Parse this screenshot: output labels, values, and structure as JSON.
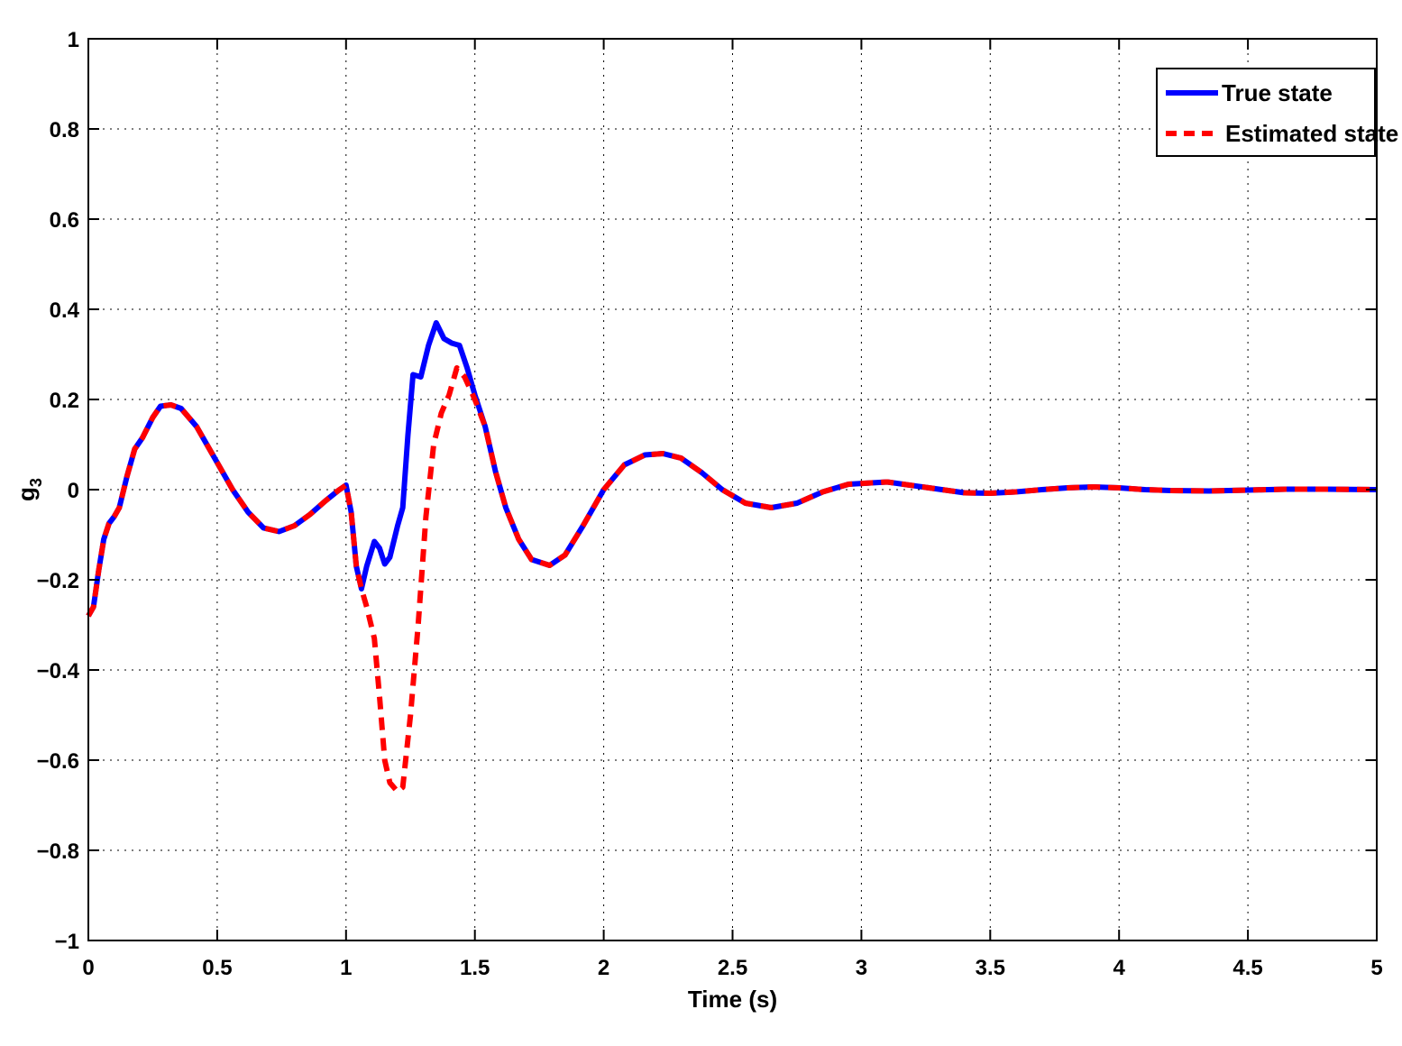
{
  "chart_data": {
    "type": "line",
    "xlabel": "Time (s)",
    "ylabel": "g",
    "ylabel_sub": "3",
    "xlim": [
      0,
      5
    ],
    "ylim": [
      -1,
      1
    ],
    "grid": true,
    "legend_position": "top-right",
    "x_ticks": [
      0,
      0.5,
      1,
      1.5,
      2,
      2.5,
      3,
      3.5,
      4,
      4.5,
      5
    ],
    "x_tick_labels": [
      "0",
      "0.5",
      "1",
      "1.5",
      "2",
      "2.5",
      "3",
      "3.5",
      "4",
      "4.5",
      "5"
    ],
    "y_ticks": [
      -1,
      -0.8,
      -0.6,
      -0.4,
      -0.2,
      0,
      0.2,
      0.4,
      0.6,
      0.8,
      1
    ],
    "y_tick_labels": [
      "−1",
      "−0.8",
      "−0.6",
      "−0.4",
      "−0.2",
      "0",
      "0.2",
      "0.4",
      "0.6",
      "0.8",
      "1"
    ],
    "series": [
      {
        "name": "True state",
        "color": "#0000ff",
        "style": "solid",
        "points": [
          [
            0,
            -0.28
          ],
          [
            0.02,
            -0.26
          ],
          [
            0.04,
            -0.18
          ],
          [
            0.06,
            -0.11
          ],
          [
            0.08,
            -0.075
          ],
          [
            0.1,
            -0.06
          ],
          [
            0.12,
            -0.04
          ],
          [
            0.15,
            0.03
          ],
          [
            0.18,
            0.09
          ],
          [
            0.21,
            0.115
          ],
          [
            0.25,
            0.16
          ],
          [
            0.28,
            0.185
          ],
          [
            0.32,
            0.188
          ],
          [
            0.36,
            0.18
          ],
          [
            0.42,
            0.14
          ],
          [
            0.5,
            0.06
          ],
          [
            0.56,
            0.0
          ],
          [
            0.62,
            -0.05
          ],
          [
            0.68,
            -0.085
          ],
          [
            0.74,
            -0.093
          ],
          [
            0.8,
            -0.08
          ],
          [
            0.86,
            -0.055
          ],
          [
            0.92,
            -0.025
          ],
          [
            0.97,
            -0.002
          ],
          [
            1.0,
            0.01
          ],
          [
            1.02,
            -0.05
          ],
          [
            1.04,
            -0.17
          ],
          [
            1.06,
            -0.22
          ],
          [
            1.08,
            -0.17
          ],
          [
            1.11,
            -0.115
          ],
          [
            1.13,
            -0.13
          ],
          [
            1.15,
            -0.165
          ],
          [
            1.17,
            -0.15
          ],
          [
            1.2,
            -0.08
          ],
          [
            1.22,
            -0.04
          ],
          [
            1.24,
            0.12
          ],
          [
            1.26,
            0.255
          ],
          [
            1.29,
            0.25
          ],
          [
            1.32,
            0.32
          ],
          [
            1.35,
            0.37
          ],
          [
            1.38,
            0.335
          ],
          [
            1.41,
            0.325
          ],
          [
            1.44,
            0.32
          ],
          [
            1.47,
            0.27
          ],
          [
            1.5,
            0.21
          ],
          [
            1.54,
            0.14
          ],
          [
            1.58,
            0.04
          ],
          [
            1.62,
            -0.04
          ],
          [
            1.67,
            -0.11
          ],
          [
            1.72,
            -0.155
          ],
          [
            1.79,
            -0.168
          ],
          [
            1.85,
            -0.145
          ],
          [
            1.92,
            -0.08
          ],
          [
            2.0,
            0.0
          ],
          [
            2.08,
            0.055
          ],
          [
            2.16,
            0.077
          ],
          [
            2.23,
            0.08
          ],
          [
            2.3,
            0.07
          ],
          [
            2.38,
            0.038
          ],
          [
            2.46,
            0.0
          ],
          [
            2.55,
            -0.03
          ],
          [
            2.65,
            -0.04
          ],
          [
            2.75,
            -0.03
          ],
          [
            2.85,
            -0.005
          ],
          [
            2.95,
            0.012
          ],
          [
            3.1,
            0.017
          ],
          [
            3.25,
            0.005
          ],
          [
            3.4,
            -0.007
          ],
          [
            3.5,
            -0.008
          ],
          [
            3.6,
            -0.005
          ],
          [
            3.7,
            0.0
          ],
          [
            3.8,
            0.004
          ],
          [
            3.9,
            0.006
          ],
          [
            4.0,
            0.004
          ],
          [
            4.1,
            0.0
          ],
          [
            4.2,
            -0.002
          ],
          [
            4.35,
            -0.003
          ],
          [
            4.5,
            -0.001
          ],
          [
            4.65,
            0.001
          ],
          [
            4.8,
            0.001
          ],
          [
            5.0,
            0.0
          ]
        ]
      },
      {
        "name": "Estimated state",
        "color": "#ff0000",
        "style": "dashed",
        "points": [
          [
            0,
            -0.28
          ],
          [
            0.02,
            -0.26
          ],
          [
            0.04,
            -0.18
          ],
          [
            0.06,
            -0.11
          ],
          [
            0.08,
            -0.075
          ],
          [
            0.1,
            -0.06
          ],
          [
            0.12,
            -0.04
          ],
          [
            0.15,
            0.03
          ],
          [
            0.18,
            0.09
          ],
          [
            0.21,
            0.115
          ],
          [
            0.25,
            0.16
          ],
          [
            0.28,
            0.185
          ],
          [
            0.32,
            0.188
          ],
          [
            0.36,
            0.18
          ],
          [
            0.42,
            0.14
          ],
          [
            0.5,
            0.06
          ],
          [
            0.56,
            0.0
          ],
          [
            0.62,
            -0.05
          ],
          [
            0.68,
            -0.085
          ],
          [
            0.74,
            -0.093
          ],
          [
            0.8,
            -0.08
          ],
          [
            0.86,
            -0.055
          ],
          [
            0.92,
            -0.025
          ],
          [
            0.97,
            -0.002
          ],
          [
            1.0,
            0.01
          ],
          [
            1.02,
            -0.05
          ],
          [
            1.04,
            -0.17
          ],
          [
            1.06,
            -0.22
          ],
          [
            1.08,
            -0.26
          ],
          [
            1.11,
            -0.33
          ],
          [
            1.13,
            -0.46
          ],
          [
            1.15,
            -0.6
          ],
          [
            1.17,
            -0.65
          ],
          [
            1.2,
            -0.67
          ],
          [
            1.22,
            -0.66
          ],
          [
            1.25,
            -0.5
          ],
          [
            1.28,
            -0.3
          ],
          [
            1.31,
            -0.06
          ],
          [
            1.34,
            0.1
          ],
          [
            1.37,
            0.17
          ],
          [
            1.4,
            0.21
          ],
          [
            1.43,
            0.27
          ],
          [
            1.46,
            0.25
          ],
          [
            1.5,
            0.2
          ],
          [
            1.54,
            0.14
          ],
          [
            1.58,
            0.04
          ],
          [
            1.62,
            -0.04
          ],
          [
            1.67,
            -0.11
          ],
          [
            1.72,
            -0.155
          ],
          [
            1.79,
            -0.168
          ],
          [
            1.85,
            -0.145
          ],
          [
            1.92,
            -0.08
          ],
          [
            2.0,
            0.0
          ],
          [
            2.08,
            0.055
          ],
          [
            2.16,
            0.077
          ],
          [
            2.23,
            0.08
          ],
          [
            2.3,
            0.07
          ],
          [
            2.38,
            0.038
          ],
          [
            2.46,
            0.0
          ],
          [
            2.55,
            -0.03
          ],
          [
            2.65,
            -0.04
          ],
          [
            2.75,
            -0.03
          ],
          [
            2.85,
            -0.005
          ],
          [
            2.95,
            0.012
          ],
          [
            3.1,
            0.017
          ],
          [
            3.25,
            0.005
          ],
          [
            3.4,
            -0.007
          ],
          [
            3.5,
            -0.008
          ],
          [
            3.6,
            -0.005
          ],
          [
            3.7,
            0.0
          ],
          [
            3.8,
            0.004
          ],
          [
            3.9,
            0.006
          ],
          [
            4.0,
            0.004
          ],
          [
            4.1,
            0.0
          ],
          [
            4.2,
            -0.002
          ],
          [
            4.35,
            -0.003
          ],
          [
            4.5,
            -0.001
          ],
          [
            4.65,
            0.001
          ],
          [
            4.8,
            0.001
          ],
          [
            5.0,
            0.0
          ]
        ]
      }
    ]
  }
}
